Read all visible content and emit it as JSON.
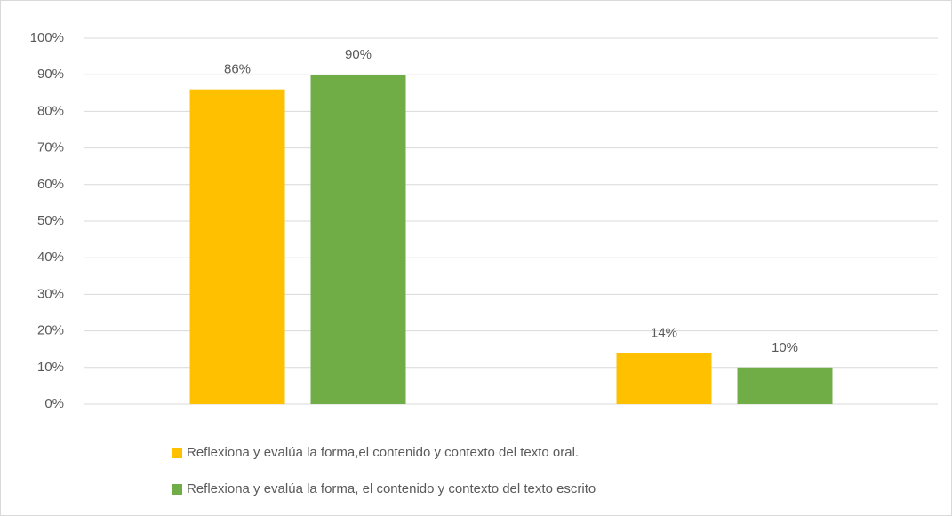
{
  "chart_data": {
    "type": "bar",
    "categories": [
      null,
      null
    ],
    "series": [
      {
        "name": "Reflexiona y evalúa la forma,el contenido y contexto del texto oral.",
        "color": "#FFC000",
        "values": [
          86,
          14
        ],
        "value_labels": [
          "86%",
          "14%"
        ]
      },
      {
        "name": "Reflexiona y evalúa la forma, el contenido y contexto del texto escrito",
        "color": "#70AD47",
        "values": [
          90,
          10
        ],
        "value_labels": [
          "90%",
          "10%"
        ]
      }
    ],
    "ylim": [
      0,
      100
    ],
    "yticks": [
      {
        "value": 0,
        "label": "0%"
      },
      {
        "value": 10,
        "label": "10%"
      },
      {
        "value": 20,
        "label": "20%"
      },
      {
        "value": 30,
        "label": "30%"
      },
      {
        "value": 40,
        "label": "40%"
      },
      {
        "value": 50,
        "label": "50%"
      },
      {
        "value": 60,
        "label": "60%"
      },
      {
        "value": 70,
        "label": "70%"
      },
      {
        "value": 80,
        "label": "80%"
      },
      {
        "value": 90,
        "label": "90%"
      },
      {
        "value": 100,
        "label": "100%"
      }
    ],
    "grid": true,
    "legend": "bottom"
  }
}
